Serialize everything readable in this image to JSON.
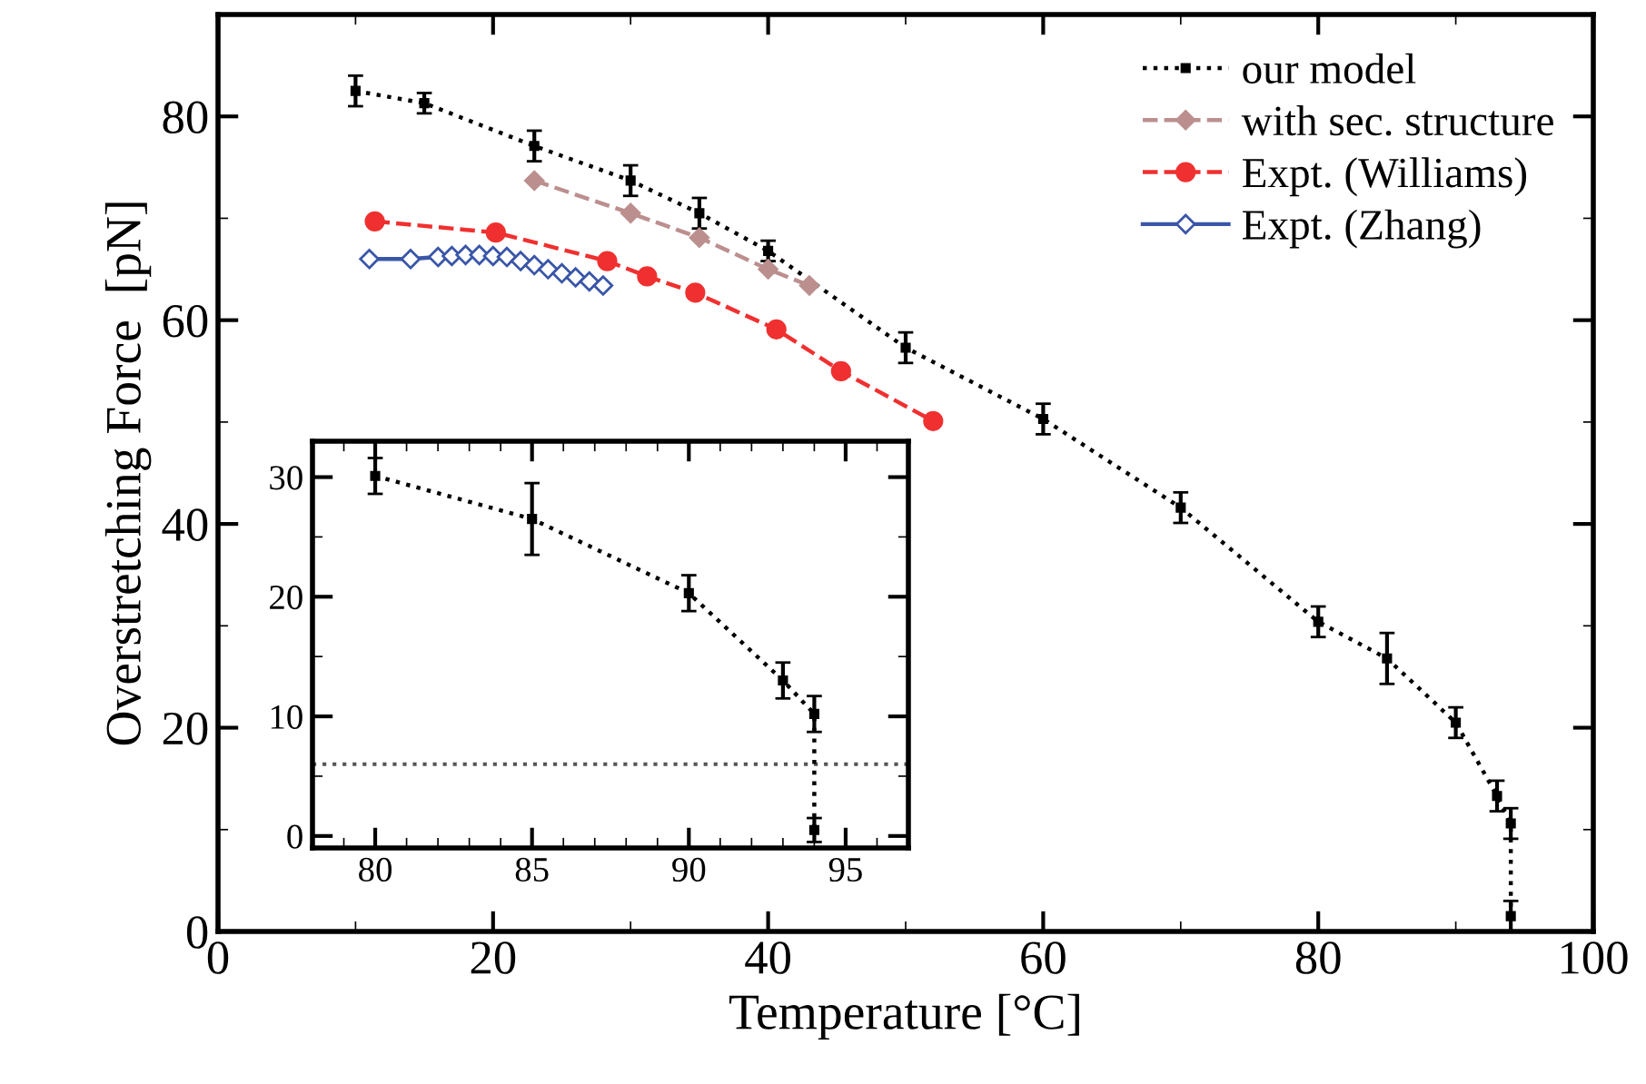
{
  "chart_data": [
    {
      "type": "line",
      "xlabel": "Temperature [°C]",
      "ylabel": "Overstretching Force  [pN]",
      "xlim": [
        0,
        100
      ],
      "ylim": [
        0,
        90
      ],
      "xticks": [
        0,
        {
          "value": 10,
          "label": null
        },
        20,
        {
          "value": 30,
          "label": null
        },
        40,
        {
          "value": 50,
          "label": null
        },
        60,
        {
          "value": 70,
          "label": null
        },
        80,
        {
          "value": 90,
          "label": null
        },
        100
      ],
      "yticks": [
        0,
        {
          "value": 10,
          "label": null
        },
        20,
        {
          "value": 30,
          "label": null
        },
        40,
        {
          "value": 50,
          "label": null
        },
        60,
        {
          "value": 70,
          "label": null
        },
        80
      ],
      "legend": "top right",
      "grid": false,
      "series": [
        {
          "name": "our model",
          "color": "#000000",
          "marker": "square",
          "line_style": "dotted",
          "x": [
            10,
            15,
            23,
            30,
            35,
            40,
            50,
            60,
            70,
            80,
            85,
            90,
            93,
            94,
            94
          ],
          "values": [
            82.5,
            81.3,
            77.1,
            73.7,
            70.5,
            66.8,
            57.3,
            50.3,
            41.6,
            30.4,
            26.8,
            20.5,
            13.3,
            10.6,
            1.5
          ],
          "errors": [
            1.5,
            1,
            1.5,
            1.5,
            1.5,
            1,
            1.5,
            1.5,
            1.5,
            1.5,
            2.5,
            1.5,
            1.5,
            1.5,
            1.5
          ]
        },
        {
          "name": "with sec. structure",
          "color": "#bc8f8f",
          "marker": "diamond",
          "line_style": "dashed",
          "x": [
            23,
            30,
            35,
            40,
            43
          ],
          "values": [
            73.7,
            70.5,
            68.1,
            65,
            63.4
          ]
        },
        {
          "name": "Expt. (Williams)",
          "color": "#f03030",
          "marker": "circle",
          "line_style": "dashed",
          "x": [
            11.4,
            20.2,
            28.3,
            31.2,
            34.7,
            40.6,
            45.3,
            52
          ],
          "values": [
            69.7,
            68.6,
            65.8,
            64.3,
            62.7,
            59.1,
            55,
            50.1
          ]
        },
        {
          "name": "Expt. (Zhang)",
          "color": "#3a56a8",
          "marker": "diamond",
          "line_style": "solid",
          "x": [
            11,
            14,
            16,
            17,
            18,
            19,
            20,
            21,
            22,
            23,
            24,
            25,
            26,
            27,
            28
          ],
          "values": [
            66,
            66,
            66.2,
            66.3,
            66.4,
            66.4,
            66.3,
            66.2,
            65.8,
            65.4,
            65,
            64.6,
            64.2,
            63.8,
            63.4
          ]
        }
      ]
    },
    {
      "type": "line",
      "xlim": [
        78,
        97
      ],
      "ylim": [
        -1,
        33
      ],
      "xticks": [
        {
          "value": 79,
          "label": null
        },
        80,
        {
          "value": 81,
          "label": null
        },
        {
          "value": 82,
          "label": null
        },
        {
          "value": 83,
          "label": null
        },
        {
          "value": 84,
          "label": null
        },
        85,
        {
          "value": 86,
          "label": null
        },
        {
          "value": 87,
          "label": null
        },
        {
          "value": 88,
          "label": null
        },
        {
          "value": 89,
          "label": null
        },
        90,
        {
          "value": 91,
          "label": null
        },
        {
          "value": 92,
          "label": null
        },
        {
          "value": 93,
          "label": null
        },
        {
          "value": 94,
          "label": null
        },
        95,
        {
          "value": 96,
          "label": null
        }
      ],
      "yticks": [
        0,
        {
          "value": 5,
          "label": null
        },
        10,
        {
          "value": 15,
          "label": null
        },
        20,
        {
          "value": 25,
          "label": null
        },
        30
      ],
      "grid": false,
      "ref_lines": [
        {
          "axis": "y",
          "value": 6,
          "color": "#555555",
          "line_style": "dotted"
        }
      ],
      "series": [
        {
          "color": "#000000",
          "marker": "square",
          "line_style": "dotted",
          "x": [
            80,
            85,
            90,
            93,
            94,
            94
          ],
          "values": [
            30.1,
            26.5,
            20.3,
            13,
            10.2,
            0.5
          ],
          "errors": [
            1.5,
            3,
            1.5,
            1.5,
            1.5,
            1
          ]
        }
      ]
    }
  ]
}
